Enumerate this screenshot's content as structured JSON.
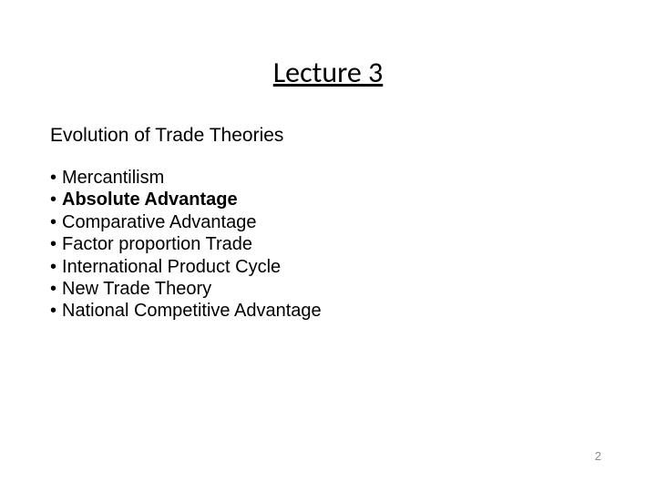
{
  "slide": {
    "title": "Lecture 3",
    "subtitle": "Evolution of Trade Theories",
    "bullets": [
      {
        "text": "Mercantilism",
        "bold": false,
        "fontsize": 20
      },
      {
        "text": "Absolute Advantage",
        "bold": true,
        "fontsize": 20
      },
      {
        "text": "Comparative Advantage",
        "bold": false,
        "fontsize": 20
      },
      {
        "text": "Factor proportion Trade",
        "bold": false,
        "fontsize": 20
      },
      {
        "text": "International Product Cycle",
        "bold": false,
        "fontsize": 20
      },
      {
        "text": "New Trade Theory",
        "bold": false,
        "fontsize": 20
      },
      {
        "text": "National Competitive Advantage",
        "bold": false,
        "fontsize": 20
      }
    ],
    "page_number": "2",
    "colors": {
      "background": "#ffffff",
      "text": "#000000",
      "page_number": "#8b8b8b"
    },
    "typography": {
      "title_fontsize": 32,
      "title_family": "Calibri",
      "subtitle_fontsize": 21,
      "body_family": "Arial",
      "page_number_fontsize": 13
    }
  }
}
